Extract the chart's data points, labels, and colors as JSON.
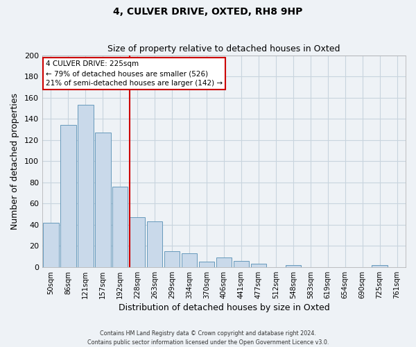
{
  "title": "4, CULVER DRIVE, OXTED, RH8 9HP",
  "subtitle": "Size of property relative to detached houses in Oxted",
  "xlabel": "Distribution of detached houses by size in Oxted",
  "ylabel": "Number of detached properties",
  "bar_labels": [
    "50sqm",
    "86sqm",
    "121sqm",
    "157sqm",
    "192sqm",
    "228sqm",
    "263sqm",
    "299sqm",
    "334sqm",
    "370sqm",
    "406sqm",
    "441sqm",
    "477sqm",
    "512sqm",
    "548sqm",
    "583sqm",
    "619sqm",
    "654sqm",
    "690sqm",
    "725sqm",
    "761sqm"
  ],
  "bar_values": [
    42,
    134,
    153,
    127,
    76,
    47,
    43,
    15,
    13,
    5,
    9,
    6,
    3,
    0,
    2,
    0,
    0,
    0,
    0,
    2,
    0
  ],
  "bar_color": "#c9d9ea",
  "bar_edgecolor": "#6699bb",
  "property_line_color": "#cc0000",
  "property_line_index": 5,
  "ylim": [
    0,
    200
  ],
  "yticks": [
    0,
    20,
    40,
    60,
    80,
    100,
    120,
    140,
    160,
    180,
    200
  ],
  "annotation_line1": "4 CULVER DRIVE: 225sqm",
  "annotation_line2": "← 79% of detached houses are smaller (526)",
  "annotation_line3": "21% of semi-detached houses are larger (142) →",
  "annotation_box_edgecolor": "#cc0000",
  "annotation_box_facecolor": "#ffffff",
  "footer_line1": "Contains HM Land Registry data © Crown copyright and database right 2024.",
  "footer_line2": "Contains public sector information licensed under the Open Government Licence v3.0.",
  "grid_color": "#c8d4de",
  "background_color": "#eef2f6",
  "plot_bg_color": "#eef2f6"
}
